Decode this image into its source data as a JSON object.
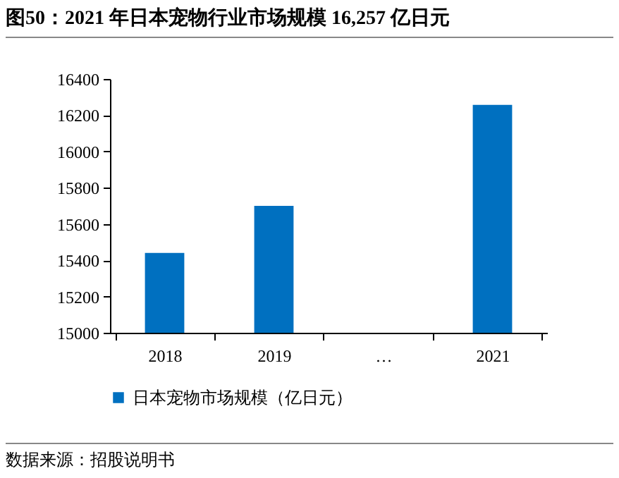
{
  "chart_data": {
    "type": "bar",
    "title": "图50：2021 年日本宠物行业市场规模 16,257 亿日元",
    "categories": [
      "2018",
      "2019",
      "…",
      "2021"
    ],
    "series": [
      {
        "name": "日本宠物市场规模（亿日元）",
        "color": "#0070c0",
        "values": [
          15440,
          15700,
          null,
          16257
        ]
      }
    ],
    "ylim": [
      15000,
      16400
    ],
    "yticks": [
      15000,
      15200,
      15400,
      15600,
      15800,
      16000,
      16200,
      16400
    ],
    "grid": false,
    "legend": "bottom",
    "annotations": [
      "数据来源：招股说明书"
    ]
  }
}
